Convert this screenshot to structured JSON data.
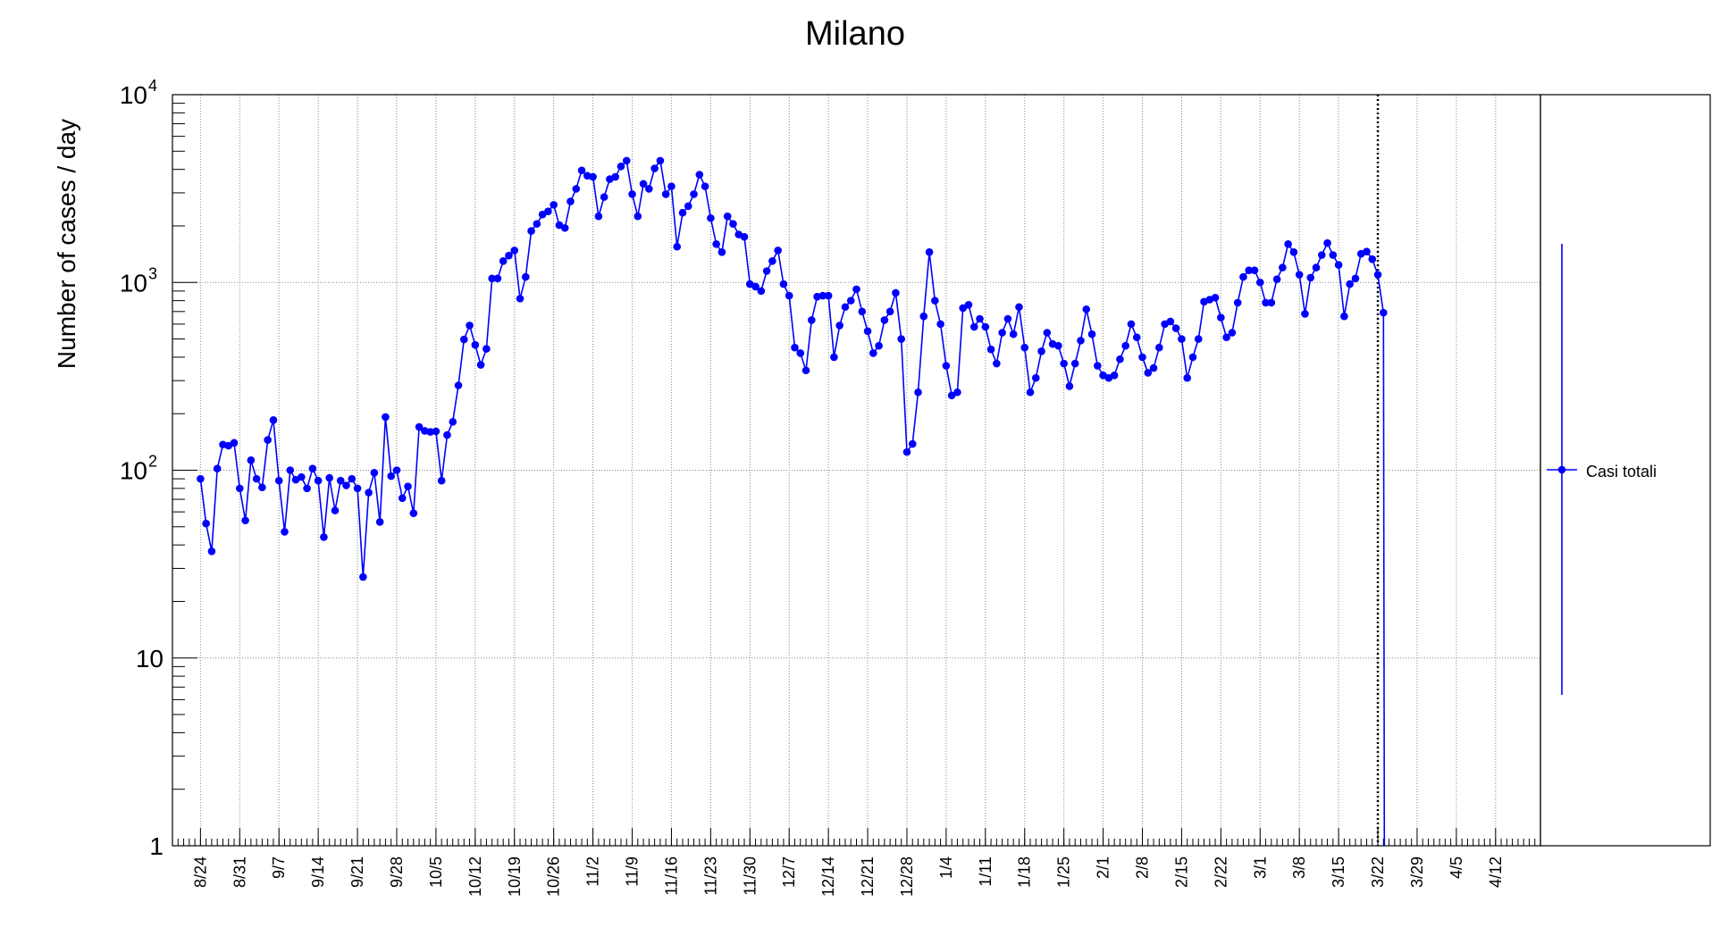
{
  "chart_data": {
    "type": "line",
    "title": "Milano",
    "xlabel": "",
    "ylabel": "Number of cases / day",
    "yscale": "log",
    "ylim": [
      1,
      10000
    ],
    "xlim": [
      "2020-08-19",
      "2021-04-20"
    ],
    "grid": true,
    "legend_position": "right",
    "marker_date": "2021-03-22",
    "y_ticks": [
      {
        "value": 1,
        "label": "1"
      },
      {
        "value": 10,
        "label": "10"
      },
      {
        "value": 100,
        "label": "10",
        "exp": "2"
      },
      {
        "value": 1000,
        "label": "10",
        "exp": "3"
      },
      {
        "value": 10000,
        "label": "10",
        "exp": "4"
      }
    ],
    "x_ticks": [
      {
        "date": "2020-08-24",
        "label": "8/24"
      },
      {
        "date": "2020-08-31",
        "label": "8/31"
      },
      {
        "date": "2020-09-07",
        "label": "9/7"
      },
      {
        "date": "2020-09-14",
        "label": "9/14"
      },
      {
        "date": "2020-09-21",
        "label": "9/21"
      },
      {
        "date": "2020-09-28",
        "label": "9/28"
      },
      {
        "date": "2020-10-05",
        "label": "10/5"
      },
      {
        "date": "2020-10-12",
        "label": "10/12"
      },
      {
        "date": "2020-10-19",
        "label": "10/19"
      },
      {
        "date": "2020-10-26",
        "label": "10/26"
      },
      {
        "date": "2020-11-02",
        "label": "11/2"
      },
      {
        "date": "2020-11-09",
        "label": "11/9"
      },
      {
        "date": "2020-11-16",
        "label": "11/16"
      },
      {
        "date": "2020-11-23",
        "label": "11/23"
      },
      {
        "date": "2020-11-30",
        "label": "11/30"
      },
      {
        "date": "2020-12-07",
        "label": "12/7"
      },
      {
        "date": "2020-12-14",
        "label": "12/14"
      },
      {
        "date": "2020-12-21",
        "label": "12/21"
      },
      {
        "date": "2020-12-28",
        "label": "12/28"
      },
      {
        "date": "2021-01-04",
        "label": "1/4"
      },
      {
        "date": "2021-01-11",
        "label": "1/11"
      },
      {
        "date": "2021-01-18",
        "label": "1/18"
      },
      {
        "date": "2021-01-25",
        "label": "1/25"
      },
      {
        "date": "2021-02-01",
        "label": "2/1"
      },
      {
        "date": "2021-02-08",
        "label": "2/8"
      },
      {
        "date": "2021-02-15",
        "label": "2/15"
      },
      {
        "date": "2021-02-22",
        "label": "2/22"
      },
      {
        "date": "2021-03-01",
        "label": "3/1"
      },
      {
        "date": "2021-03-08",
        "label": "3/8"
      },
      {
        "date": "2021-03-15",
        "label": "3/15"
      },
      {
        "date": "2021-03-22",
        "label": "3/22"
      },
      {
        "date": "2021-03-29",
        "label": "3/29"
      },
      {
        "date": "2021-04-05",
        "label": "4/5"
      },
      {
        "date": "2021-04-12",
        "label": "4/12"
      }
    ],
    "series": [
      {
        "name": "Casi totali",
        "color": "#0000ff",
        "x_start": "2020-08-24",
        "x_step_days": 1,
        "values": [
          90,
          52,
          37,
          102,
          137,
          135,
          140,
          80,
          54,
          113,
          90,
          81,
          145,
          185,
          88,
          47,
          100,
          89,
          92,
          80,
          102,
          88,
          44,
          91,
          61,
          88,
          83,
          90,
          80,
          27,
          76,
          97,
          53,
          192,
          93,
          100,
          71,
          82,
          59,
          170,
          162,
          160,
          161,
          88,
          154,
          181,
          283,
          497,
          590,
          465,
          364,
          443,
          1050,
          1050,
          1300,
          1390,
          1480,
          820,
          1070,
          1880,
          2050,
          2300,
          2390,
          2590,
          2020,
          1950,
          2700,
          3150,
          3950,
          3700,
          3650,
          2250,
          2850,
          3550,
          3650,
          4150,
          4450,
          2950,
          2250,
          3350,
          3150,
          4050,
          4450,
          2950,
          3250,
          1550,
          2350,
          2550,
          2950,
          3750,
          3250,
          2200,
          1600,
          1450,
          2250,
          2050,
          1800,
          1750,
          980,
          950,
          900,
          1150,
          1300,
          1480,
          980,
          850,
          450,
          420,
          340,
          630,
          840,
          850,
          850,
          400,
          590,
          740,
          800,
          920,
          700,
          550,
          420,
          460,
          630,
          700,
          880,
          500,
          125,
          138,
          260,
          660,
          1450,
          800,
          600,
          360,
          250,
          260,
          730,
          760,
          580,
          640,
          580,
          440,
          370,
          540,
          640,
          530,
          740,
          450,
          260,
          310,
          430,
          540,
          470,
          460,
          370,
          280,
          370,
          490,
          720,
          530,
          360,
          320,
          310,
          320,
          390,
          460,
          600,
          510,
          400,
          330,
          350,
          450,
          600,
          620,
          570,
          500,
          310,
          400,
          500,
          790,
          810,
          830,
          650,
          510,
          540,
          780,
          1070,
          1160,
          1160,
          1000,
          780,
          780,
          1040,
          1200,
          1600,
          1450,
          1100,
          680,
          1060,
          1200,
          1400,
          1620,
          1400,
          1240,
          660,
          980,
          1050,
          1420,
          1460,
          1330,
          1100,
          690
        ]
      }
    ]
  }
}
